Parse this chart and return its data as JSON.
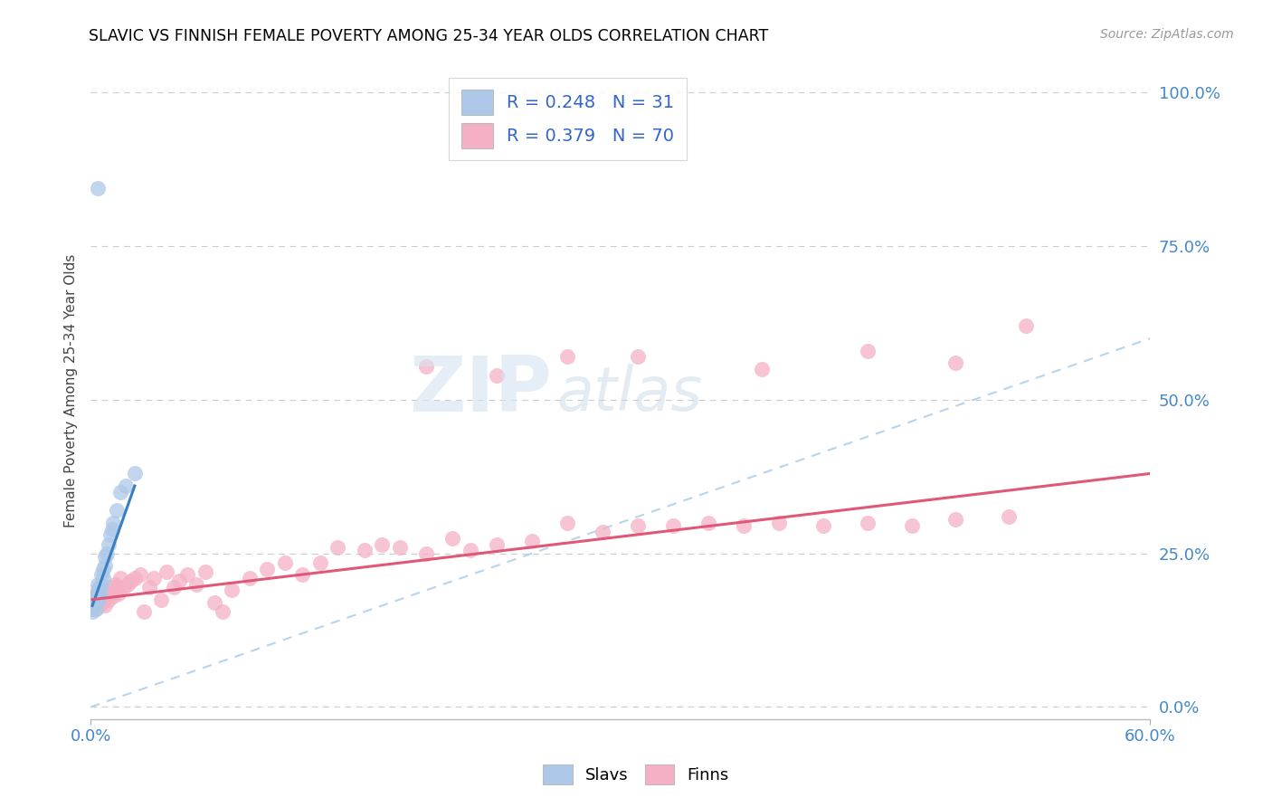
{
  "title": "SLAVIC VS FINNISH FEMALE POVERTY AMONG 25-34 YEAR OLDS CORRELATION CHART",
  "source": "Source: ZipAtlas.com",
  "ylabel": "Female Poverty Among 25-34 Year Olds",
  "xlim": [
    0.0,
    0.6
  ],
  "ylim": [
    -0.02,
    1.05
  ],
  "yticks_right": [
    0.0,
    0.25,
    0.5,
    0.75,
    1.0
  ],
  "ytick_labels_right": [
    "0.0%",
    "25.0%",
    "50.0%",
    "75.0%",
    "100.0%"
  ],
  "xtick_positions": [
    0.0,
    0.6
  ],
  "xtick_labels": [
    "0.0%",
    "60.0%"
  ],
  "slav_R": 0.248,
  "slav_N": 31,
  "finn_R": 0.379,
  "finn_N": 70,
  "slav_color": "#adc8e8",
  "finn_color": "#f5b0c5",
  "slav_line_color": "#3a7fc1",
  "finn_line_color": "#e05878",
  "ref_line_color": "#b8d4ed",
  "watermark_zip": "ZIP",
  "watermark_atlas": "atlas",
  "slav_x": [
    0.001,
    0.001,
    0.002,
    0.002,
    0.002,
    0.003,
    0.003,
    0.003,
    0.003,
    0.004,
    0.004,
    0.004,
    0.005,
    0.005,
    0.005,
    0.006,
    0.006,
    0.007,
    0.007,
    0.008,
    0.008,
    0.009,
    0.01,
    0.011,
    0.012,
    0.013,
    0.015,
    0.017,
    0.02,
    0.025,
    0.004
  ],
  "slav_y": [
    0.155,
    0.16,
    0.165,
    0.175,
    0.18,
    0.16,
    0.17,
    0.175,
    0.18,
    0.175,
    0.19,
    0.2,
    0.18,
    0.185,
    0.195,
    0.2,
    0.215,
    0.21,
    0.225,
    0.23,
    0.245,
    0.25,
    0.265,
    0.28,
    0.29,
    0.3,
    0.32,
    0.35,
    0.36,
    0.38,
    0.845
  ],
  "finn_x": [
    0.002,
    0.003,
    0.003,
    0.004,
    0.005,
    0.006,
    0.006,
    0.007,
    0.008,
    0.009,
    0.01,
    0.011,
    0.012,
    0.013,
    0.014,
    0.015,
    0.016,
    0.017,
    0.019,
    0.021,
    0.023,
    0.025,
    0.028,
    0.03,
    0.033,
    0.036,
    0.04,
    0.043,
    0.047,
    0.05,
    0.055,
    0.06,
    0.065,
    0.07,
    0.075,
    0.08,
    0.09,
    0.1,
    0.11,
    0.12,
    0.13,
    0.14,
    0.155,
    0.165,
    0.175,
    0.19,
    0.205,
    0.215,
    0.23,
    0.25,
    0.27,
    0.29,
    0.31,
    0.33,
    0.35,
    0.37,
    0.39,
    0.415,
    0.44,
    0.465,
    0.49,
    0.52,
    0.27,
    0.19,
    0.23,
    0.31,
    0.38,
    0.44,
    0.49,
    0.53
  ],
  "finn_y": [
    0.175,
    0.16,
    0.175,
    0.185,
    0.165,
    0.17,
    0.18,
    0.175,
    0.165,
    0.185,
    0.175,
    0.195,
    0.185,
    0.18,
    0.2,
    0.195,
    0.185,
    0.21,
    0.195,
    0.2,
    0.205,
    0.21,
    0.215,
    0.155,
    0.195,
    0.21,
    0.175,
    0.22,
    0.195,
    0.205,
    0.215,
    0.2,
    0.22,
    0.17,
    0.155,
    0.19,
    0.21,
    0.225,
    0.235,
    0.215,
    0.235,
    0.26,
    0.255,
    0.265,
    0.26,
    0.25,
    0.275,
    0.255,
    0.265,
    0.27,
    0.3,
    0.285,
    0.295,
    0.295,
    0.3,
    0.295,
    0.3,
    0.295,
    0.3,
    0.295,
    0.305,
    0.31,
    0.57,
    0.555,
    0.54,
    0.57,
    0.55,
    0.58,
    0.56,
    0.62
  ],
  "slav_trend_x": [
    0.001,
    0.025
  ],
  "slav_trend_y": [
    0.165,
    0.36
  ],
  "finn_trend_x": [
    0.001,
    0.6
  ],
  "finn_trend_y": [
    0.175,
    0.38
  ]
}
